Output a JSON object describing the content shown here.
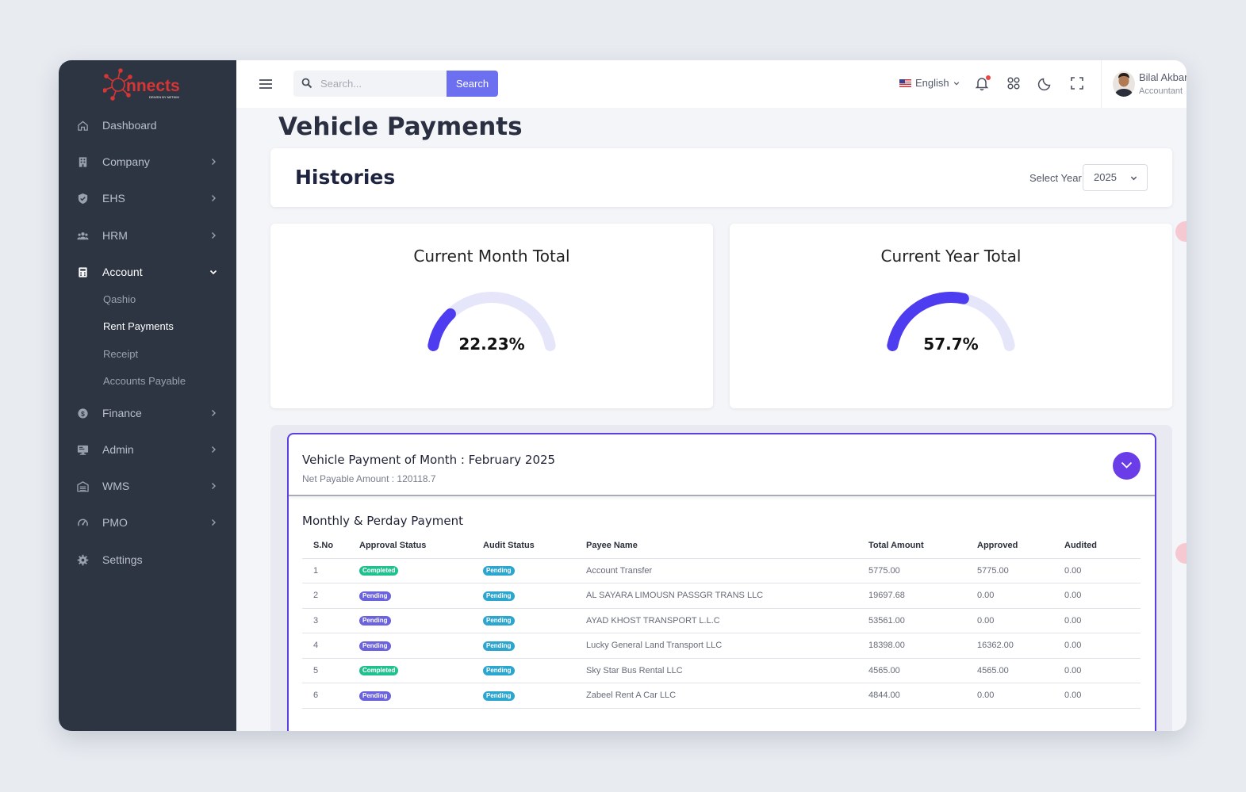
{
  "brand": {
    "name": "Connects",
    "tagline": "DRIVEN BY NETKIM"
  },
  "sidebar": {
    "items": [
      {
        "label": "Dashboard",
        "icon": "home-icon",
        "expandable": false
      },
      {
        "label": "Company",
        "icon": "building-icon",
        "expandable": true
      },
      {
        "label": "EHS",
        "icon": "shield-icon",
        "expandable": true
      },
      {
        "label": "HRM",
        "icon": "users-icon",
        "expandable": true
      },
      {
        "label": "Account",
        "icon": "calculator-icon",
        "expandable": true,
        "expanded": true
      },
      {
        "label": "Finance",
        "icon": "dollar-icon",
        "expandable": true
      },
      {
        "label": "Admin",
        "icon": "monitor-icon",
        "expandable": true
      },
      {
        "label": "WMS",
        "icon": "warehouse-icon",
        "expandable": true
      },
      {
        "label": "PMO",
        "icon": "gauge-icon",
        "expandable": true
      },
      {
        "label": "Settings",
        "icon": "gear-icon",
        "expandable": false
      }
    ],
    "account_sub": [
      "Qashio",
      "Rent Payments",
      "Receipt",
      "Accounts Payable"
    ],
    "active_sub": "Rent Payments"
  },
  "topbar": {
    "search_placeholder": "Search...",
    "search_button": "Search",
    "language": "English",
    "user": {
      "name": "Bilal Akbar",
      "role": "Accountant"
    }
  },
  "page": {
    "title": "Vehicle Payments",
    "histories_title": "Histories",
    "select_year_label": "Select Year",
    "selected_year": "2025"
  },
  "gauges": {
    "month": {
      "title": "Current Month Total",
      "value_text": "22.23%",
      "percent": 22.23
    },
    "year": {
      "title": "Current Year Total",
      "value_text": "57.7%",
      "percent": 57.7
    }
  },
  "payment": {
    "title": "Vehicle Payment of Month : February 2025",
    "net_payable": "Net Payable Amount : 120118.7",
    "section_title": "Monthly & Perday Payment",
    "columns": [
      "S.No",
      "Approval Status",
      "Audit Status",
      "Payee Name",
      "Total Amount",
      "Approved",
      "Audited"
    ],
    "rows": [
      {
        "sno": "1",
        "approval": "Completed",
        "audit": "Pending",
        "payee": "Account Transfer",
        "total": "5775.00",
        "approved": "5775.00",
        "audited": "0.00"
      },
      {
        "sno": "2",
        "approval": "Pending",
        "audit": "Pending",
        "payee": "AL SAYARA LIMOUSN PASSGR TRANS LLC",
        "total": "19697.68",
        "approved": "0.00",
        "audited": "0.00"
      },
      {
        "sno": "3",
        "approval": "Pending",
        "audit": "Pending",
        "payee": "AYAD KHOST TRANSPORT L.L.C",
        "total": "53561.00",
        "approved": "0.00",
        "audited": "0.00"
      },
      {
        "sno": "4",
        "approval": "Pending",
        "audit": "Pending",
        "payee": "Lucky General Land Transport LLC",
        "total": "18398.00",
        "approved": "16362.00",
        "audited": "0.00"
      },
      {
        "sno": "5",
        "approval": "Completed",
        "audit": "Pending",
        "payee": "Sky Star Bus Rental LLC",
        "total": "4565.00",
        "approved": "4565.00",
        "audited": "0.00"
      },
      {
        "sno": "6",
        "approval": "Pending",
        "audit": "Pending",
        "payee": "Zabeel Rent A Car LLC",
        "total": "4844.00",
        "approved": "0.00",
        "audited": "0.00"
      }
    ]
  },
  "colors": {
    "accent": "#6c6ff0",
    "gauge_fill": "#4d3cf0",
    "gauge_track": "#e6e6fb",
    "sidebar_bg": "#2e3542",
    "completed": "#20c18e",
    "pending": "#6b62dd",
    "audit_pending": "#2ca6cf"
  }
}
